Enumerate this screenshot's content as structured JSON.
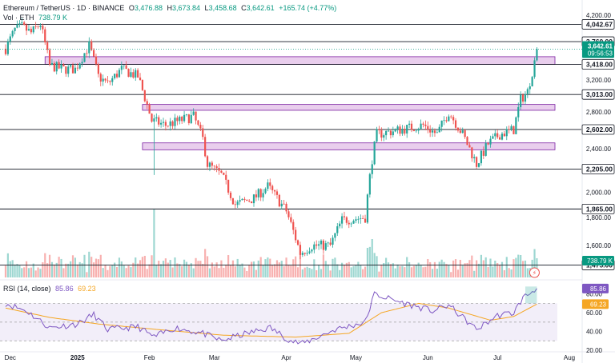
{
  "header": {
    "symbol": "Ethereum / TetherUS · 1D · BINANCE",
    "open_label": "O",
    "open": "3,476.88",
    "high_label": "H",
    "high": "3,673.84",
    "low_label": "L",
    "low": "3,458.68",
    "close_label": "C",
    "close": "3,642.61",
    "change": "+165.74 (+4.77%)",
    "vol_label": "Vol · ETH",
    "vol_value": "738.79 K"
  },
  "price_badge": {
    "price": "3,642.61",
    "countdown": "09:56:53"
  },
  "vol_badge": "738.79 K",
  "rsi_header": {
    "label": "RSI (14, close)",
    "rsi": "85.86",
    "ma": "69.23"
  },
  "rsi_badges": {
    "rsi": "85.86",
    "ma": "69.23"
  },
  "colors": {
    "up": "#26a69a",
    "down": "#ef5350",
    "zone": "#e1bee7",
    "zone_border": "#7b1fa2",
    "rsi_line": "#7e57c2",
    "rsi_ma": "#f5a623",
    "badge_up": "#089981",
    "rsi_badge": "#7e57c2"
  },
  "chart_data": {
    "type": "candlestick",
    "price_axis": {
      "ticks": [
        "4,200.00",
        "3,800.00",
        "3,200.00",
        "3,000.00",
        "2,800.00",
        "2,400.00",
        "2,200.00",
        "2,000.00",
        "1,800.00",
        "1,600.00"
      ],
      "range": [
        1400,
        4300
      ],
      "scale": "log"
    },
    "time_axis": {
      "ticks": [
        "Dec",
        "2025",
        "Feb",
        "Mar",
        "Apr",
        "May",
        "Jun",
        "Jul",
        "Aug"
      ]
    },
    "levels": [
      "4,042.67",
      "3,760.00",
      "3,418.00",
      "3,013.00",
      "2,602.00",
      "2,205.00",
      "1,865.00",
      "1,475.00"
    ],
    "zones": [
      {
        "from": "Dec 18",
        "low": 3418,
        "high": 3530
      },
      {
        "from": "Jan 29",
        "low": 2820,
        "high": 2890
      },
      {
        "from": "Jan 29",
        "low": 2390,
        "high": 2460
      }
    ],
    "ohlc_waypoints": [
      [
        "Dec 01",
        3650
      ],
      [
        "Dec 05",
        3950
      ],
      [
        "Dec 08",
        4000
      ],
      [
        "Dec 12",
        3900
      ],
      [
        "Dec 16",
        4050
      ],
      [
        "Dec 20",
        3400
      ],
      [
        "Dec 26",
        3350
      ],
      [
        "Dec 31",
        3350
      ],
      [
        "Jan 06",
        3700
      ],
      [
        "Jan 10",
        3250
      ],
      [
        "Jan 14",
        3150
      ],
      [
        "Jan 20",
        3350
      ],
      [
        "Jan 27",
        3250
      ],
      [
        "Feb 02",
        2700
      ],
      [
        "Feb 08",
        2650
      ],
      [
        "Feb 14",
        2700
      ],
      [
        "Feb 20",
        2750
      ],
      [
        "Feb 24",
        2500
      ],
      [
        "Feb 26",
        2250
      ],
      [
        "Mar 04",
        2150
      ],
      [
        "Mar 10",
        1900
      ],
      [
        "Mar 18",
        1950
      ],
      [
        "Mar 24",
        2050
      ],
      [
        "Apr 01",
        1850
      ],
      [
        "Apr 07",
        1550
      ],
      [
        "Apr 12",
        1600
      ],
      [
        "Apr 20",
        1600
      ],
      [
        "Apr 25",
        1780
      ],
      [
        "May 05",
        1800
      ],
      [
        "May 08",
        2300
      ],
      [
        "May 10",
        2550
      ],
      [
        "May 20",
        2600
      ],
      [
        "May 30",
        2650
      ],
      [
        "Jun 05",
        2550
      ],
      [
        "Jun 10",
        2800
      ],
      [
        "Jun 16",
        2550
      ],
      [
        "Jun 22",
        2250
      ],
      [
        "Jun 27",
        2450
      ],
      [
        "Jul 02",
        2550
      ],
      [
        "Jul 08",
        2600
      ],
      [
        "Jul 11",
        2950
      ],
      [
        "Jul 14",
        3050
      ],
      [
        "Jul 17",
        3450
      ],
      [
        "Jul 18",
        3642.61
      ]
    ],
    "rsi": {
      "axis_ticks": [
        "80.00",
        "60.00",
        "40.00",
        "20.00"
      ],
      "upper": 70,
      "lower": 30,
      "rsi_waypoints": [
        [
          "Dec 01",
          70
        ],
        [
          "Dec 10",
          62
        ],
        [
          "Dec 20",
          44
        ],
        [
          "Jan 01",
          48
        ],
        [
          "Jan 08",
          58
        ],
        [
          "Jan 14",
          42
        ],
        [
          "Jan 27",
          45
        ],
        [
          "Feb 03",
          34
        ],
        [
          "Feb 12",
          44
        ],
        [
          "Feb 24",
          38
        ],
        [
          "Mar 04",
          30
        ],
        [
          "Mar 12",
          36
        ],
        [
          "Mar 25",
          44
        ],
        [
          "Apr 03",
          30
        ],
        [
          "Apr 08",
          27
        ],
        [
          "Apr 22",
          42
        ],
        [
          "May 05",
          50
        ],
        [
          "May 09",
          80
        ],
        [
          "May 14",
          76
        ],
        [
          "May 22",
          70
        ],
        [
          "Jun 03",
          62
        ],
        [
          "Jun 10",
          68
        ],
        [
          "Jun 22",
          42
        ],
        [
          "Jul 01",
          57
        ],
        [
          "Jul 08",
          60
        ],
        [
          "Jul 12",
          76
        ],
        [
          "Jul 18",
          85.86
        ]
      ],
      "ma_waypoints": [
        [
          "Dec 01",
          65
        ],
        [
          "Dec 20",
          55
        ],
        [
          "Jan 10",
          48
        ],
        [
          "Feb 05",
          42
        ],
        [
          "Mar 05",
          36
        ],
        [
          "Apr 05",
          34
        ],
        [
          "Apr 28",
          38
        ],
        [
          "May 12",
          60
        ],
        [
          "May 28",
          70
        ],
        [
          "Jun 10",
          65
        ],
        [
          "Jun 28",
          52
        ],
        [
          "Jul 08",
          56
        ],
        [
          "Jul 18",
          69.23
        ]
      ]
    }
  }
}
